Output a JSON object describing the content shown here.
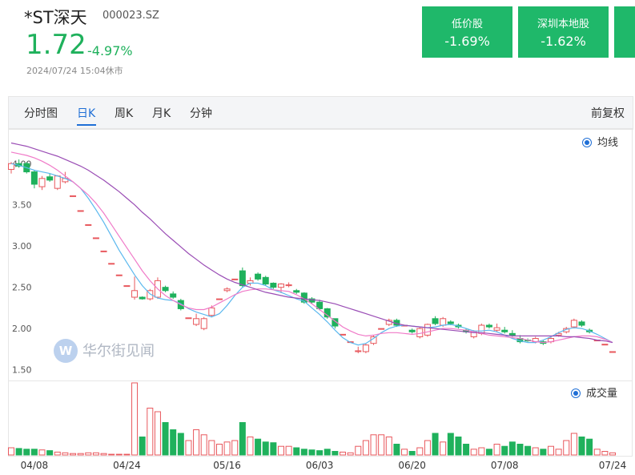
{
  "header": {
    "name": "*ST深天",
    "code": "000023.SZ",
    "price": "1.72",
    "change": "-4.97%",
    "time": "2024/07/24 15:04休市"
  },
  "cards": [
    {
      "label": "低价股",
      "change": "-1.69%"
    },
    {
      "label": "深圳本地股",
      "change": "-1.62%"
    }
  ],
  "tabs": [
    "分时图",
    "日K",
    "周K",
    "月K",
    "分钟"
  ],
  "active_tab": 1,
  "adjust": "前复权",
  "watermark": "华尔街见闻",
  "chart_data": {
    "type": "candlestick",
    "categories": [
      null,
      null,
      null,
      "04/08",
      null,
      null,
      null,
      null,
      null,
      null,
      null,
      null,
      null,
      null,
      null,
      "04/24",
      null,
      null,
      null,
      null,
      null,
      null,
      null,
      null,
      null,
      null,
      null,
      null,
      "05/16",
      null,
      null,
      null,
      null,
      null,
      null,
      null,
      null,
      null,
      null,
      null,
      "06/03",
      null,
      null,
      null,
      null,
      null,
      null,
      null,
      null,
      null,
      null,
      null,
      "06/20",
      null,
      null,
      null,
      null,
      null,
      null,
      null,
      null,
      null,
      null,
      null,
      "07/08",
      null,
      null,
      null,
      null,
      null,
      null,
      null,
      null,
      null,
      null,
      null,
      null,
      null,
      "07/24"
    ],
    "open": [
      3.93,
      4.0,
      4.0,
      3.9,
      3.72,
      3.84,
      3.7,
      3.78,
      3.61,
      3.43,
      3.26,
      3.1,
      2.94,
      2.79,
      2.65,
      2.52,
      2.38,
      2.38,
      2.36,
      2.38,
      2.5,
      2.42,
      2.34,
      2.13,
      2.05,
      2.0,
      2.16,
      2.36,
      2.46,
      2.6,
      2.7,
      2.55,
      2.66,
      2.62,
      2.55,
      2.5,
      2.52,
      2.46,
      2.43,
      2.36,
      2.32,
      2.24,
      2.12,
      1.93,
      1.84,
      1.72,
      1.72,
      1.82,
      2.0,
      2.05,
      2.1,
      2.04,
      1.98,
      1.9,
      1.92,
      2.12,
      2.04,
      2.08,
      2.04,
      1.98,
      1.9,
      1.94,
      2.04,
      1.98,
      1.98,
      1.94,
      1.88,
      1.86,
      1.84,
      1.84,
      1.84,
      1.92,
      1.96,
      2.02,
      2.08,
      1.98,
      1.86,
      1.81,
      1.72
    ],
    "high": [
      4.02,
      4.05,
      4.02,
      3.92,
      3.85,
      3.88,
      3.86,
      3.9,
      3.61,
      3.43,
      3.26,
      3.1,
      2.94,
      2.79,
      2.65,
      2.52,
      2.63,
      2.39,
      2.48,
      2.62,
      2.52,
      2.45,
      2.36,
      2.13,
      2.18,
      2.14,
      2.28,
      2.36,
      2.5,
      2.6,
      2.74,
      2.62,
      2.68,
      2.64,
      2.56,
      2.55,
      2.56,
      2.48,
      2.44,
      2.38,
      2.35,
      2.25,
      2.12,
      1.93,
      1.84,
      1.78,
      1.82,
      1.92,
      2.0,
      2.12,
      2.12,
      2.04,
      2.0,
      2.02,
      2.06,
      2.15,
      2.14,
      2.1,
      2.06,
      2.0,
      1.98,
      2.06,
      2.06,
      2.06,
      2.02,
      1.98,
      1.92,
      1.88,
      1.9,
      1.86,
      1.9,
      1.96,
      2.02,
      2.12,
      2.1,
      2.0,
      1.86,
      1.81,
      1.72
    ],
    "low": [
      3.88,
      3.95,
      3.88,
      3.7,
      3.68,
      3.78,
      3.68,
      3.76,
      3.61,
      3.43,
      3.26,
      3.1,
      2.94,
      2.79,
      2.65,
      2.52,
      2.35,
      2.35,
      2.34,
      2.36,
      2.44,
      2.36,
      2.22,
      2.13,
      2.03,
      1.98,
      2.14,
      2.36,
      2.44,
      2.6,
      2.5,
      2.52,
      2.58,
      2.52,
      2.48,
      2.43,
      2.5,
      2.42,
      2.3,
      2.3,
      2.22,
      2.12,
      2.0,
      1.93,
      1.84,
      1.7,
      1.7,
      1.8,
      2.0,
      2.03,
      2.02,
      2.04,
      1.94,
      1.88,
      1.9,
      2.04,
      2.02,
      2.04,
      2.0,
      1.94,
      1.88,
      1.92,
      2.0,
      1.96,
      1.94,
      1.9,
      1.82,
      1.84,
      1.82,
      1.8,
      1.82,
      1.9,
      1.94,
      2.0,
      2.02,
      1.94,
      1.86,
      1.81,
      1.72
    ],
    "close": [
      4.0,
      3.97,
      3.9,
      3.75,
      3.82,
      3.8,
      3.85,
      3.82,
      3.61,
      3.43,
      3.26,
      3.1,
      2.94,
      2.79,
      2.65,
      2.52,
      2.46,
      2.36,
      2.46,
      2.58,
      2.46,
      2.38,
      2.24,
      2.13,
      2.12,
      2.12,
      2.25,
      2.36,
      2.48,
      2.6,
      2.52,
      2.58,
      2.6,
      2.54,
      2.5,
      2.54,
      2.53,
      2.44,
      2.32,
      2.32,
      2.24,
      2.14,
      2.03,
      1.93,
      1.84,
      1.73,
      1.8,
      1.9,
      2.0,
      2.1,
      2.04,
      2.04,
      1.96,
      2.0,
      2.05,
      2.06,
      2.12,
      2.06,
      2.02,
      1.96,
      1.96,
      2.04,
      2.02,
      2.01,
      1.96,
      1.92,
      1.84,
      1.85,
      1.88,
      1.82,
      1.88,
      1.94,
      2.0,
      2.1,
      2.04,
      1.96,
      1.86,
      1.81,
      1.72
    ],
    "up_color": "#e8585d",
    "down_color": "#1fb15c",
    "moving_averages": [
      {
        "color": "#5bb8ee",
        "values": [
          4.0,
          3.98,
          3.95,
          3.92,
          3.9,
          3.88,
          3.85,
          3.82,
          3.78,
          3.7,
          3.58,
          3.44,
          3.29,
          3.12,
          2.95,
          2.8,
          2.65,
          2.52,
          2.42,
          2.37,
          2.35,
          2.34,
          2.3,
          2.24,
          2.2,
          2.17,
          2.14,
          2.18,
          2.28,
          2.4,
          2.5,
          2.55,
          2.55,
          2.52,
          2.47,
          2.44,
          2.4,
          2.36,
          2.33,
          2.25,
          2.17,
          2.08,
          1.98,
          1.89,
          1.83,
          1.8,
          1.82,
          1.88,
          1.95,
          2.0,
          2.03,
          2.04,
          2.03,
          2.02,
          2.01,
          2.02,
          2.04,
          2.05,
          2.03,
          2.0,
          1.97,
          1.97,
          1.98,
          1.96,
          1.92,
          1.88,
          1.85,
          1.83,
          1.83,
          1.86,
          1.9,
          1.95,
          1.99,
          2.01,
          2.0,
          1.97,
          1.93,
          1.88,
          1.83
        ]
      },
      {
        "color": "#f07ac8",
        "values": [
          4.14,
          4.12,
          4.1,
          4.07,
          4.03,
          3.98,
          3.92,
          3.85,
          3.78,
          3.7,
          3.62,
          3.52,
          3.4,
          3.26,
          3.12,
          2.98,
          2.84,
          2.7,
          2.58,
          2.48,
          2.4,
          2.34,
          2.29,
          2.25,
          2.23,
          2.23,
          2.26,
          2.31,
          2.36,
          2.41,
          2.45,
          2.47,
          2.48,
          2.48,
          2.47,
          2.46,
          2.45,
          2.41,
          2.36,
          2.3,
          2.23,
          2.16,
          2.09,
          2.02,
          1.97,
          1.93,
          1.91,
          1.92,
          1.94,
          1.95,
          1.95,
          1.94,
          1.93,
          1.94,
          1.96,
          1.98,
          2.0,
          2.0,
          1.99,
          1.98,
          1.96,
          1.94,
          1.92,
          1.91,
          1.9,
          1.89,
          1.88,
          1.86,
          1.84,
          1.83,
          1.84,
          1.86,
          1.88,
          1.9,
          1.91,
          1.91,
          1.9,
          1.87,
          1.83
        ]
      },
      {
        "color": "#9a4db5",
        "values": [
          4.25,
          4.23,
          4.21,
          4.18,
          4.15,
          4.12,
          4.09,
          4.05,
          4.01,
          3.97,
          3.92,
          3.86,
          3.8,
          3.73,
          3.66,
          3.58,
          3.5,
          3.41,
          3.33,
          3.24,
          3.15,
          3.07,
          2.99,
          2.91,
          2.84,
          2.77,
          2.71,
          2.65,
          2.6,
          2.56,
          2.53,
          2.5,
          2.47,
          2.44,
          2.42,
          2.4,
          2.38,
          2.37,
          2.36,
          2.35,
          2.34,
          2.32,
          2.3,
          2.27,
          2.24,
          2.21,
          2.18,
          2.15,
          2.12,
          2.09,
          2.06,
          2.04,
          2.03,
          2.02,
          2.01,
          2.0,
          1.99,
          1.98,
          1.97,
          1.96,
          1.95,
          1.95,
          1.94,
          1.93,
          1.92,
          1.91,
          1.91,
          1.91,
          1.91,
          1.91,
          1.91,
          1.91,
          1.9,
          1.9,
          1.89,
          1.88,
          1.86,
          1.85,
          1.83
        ]
      }
    ],
    "ma_legend": "均线",
    "volume": {
      "label": "成交量",
      "values": [
        10,
        9,
        8,
        8,
        7,
        6,
        4,
        3,
        2,
        2,
        3,
        3,
        2,
        1,
        1,
        1,
        100,
        25,
        65,
        60,
        45,
        35,
        30,
        20,
        35,
        28,
        20,
        15,
        18,
        20,
        45,
        25,
        22,
        18,
        17,
        12,
        12,
        10,
        8,
        7,
        6,
        8,
        5,
        4,
        3,
        12,
        20,
        28,
        28,
        25,
        15,
        8,
        5,
        10,
        20,
        30,
        18,
        30,
        25,
        15,
        8,
        10,
        8,
        15,
        12,
        18,
        15,
        12,
        10,
        8,
        12,
        8,
        20,
        30,
        25,
        22,
        8,
        5,
        3
      ]
    },
    "ylim": [
      1.37,
      4.43
    ],
    "yticks": [
      {
        "value": 4,
        "label": "4.00"
      },
      {
        "value": 3.5,
        "label": "3.50"
      },
      {
        "value": 3,
        "label": "3.00"
      },
      {
        "value": 2.5,
        "label": "2.50"
      },
      {
        "value": 2,
        "label": "2.00"
      },
      {
        "value": 1.5,
        "label": "1.50"
      }
    ],
    "grid": false
  }
}
